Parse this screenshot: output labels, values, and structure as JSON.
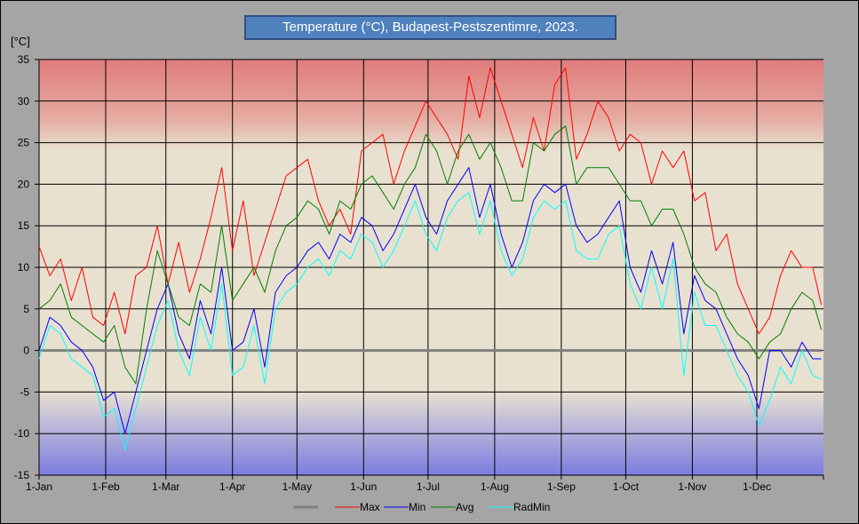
{
  "chart_data": {
    "type": "line",
    "title": "Temperature (°C), Budapest-Pestszentimre,  2023.",
    "ylabel": "[°C]",
    "xlabel": "",
    "ylim": [
      -15,
      35
    ],
    "yticks": [
      "35",
      "30",
      "25",
      "20",
      "15",
      "10",
      "5",
      "0",
      "-5",
      "-10",
      "-15"
    ],
    "ytick_values": [
      35,
      30,
      25,
      20,
      15,
      10,
      5,
      0,
      -5,
      -10,
      -15
    ],
    "xticks": [
      "1-Jan",
      "1-Feb",
      "1-Mar",
      "1-Apr",
      "1-May",
      "1-Jun",
      "1-Jul",
      "1-Aug",
      "1-Sep",
      "1-Oct",
      "1-Nov",
      "1-Dec"
    ],
    "xtick_days": [
      0,
      31,
      59,
      90,
      120,
      151,
      181,
      212,
      243,
      273,
      304,
      334
    ],
    "xlim_days": [
      0,
      365
    ],
    "grid": true,
    "legend_position": "bottom",
    "background_bands": {
      "hot_above": 25,
      "cold_below": -8
    },
    "x_days": [
      0,
      5,
      10,
      15,
      20,
      25,
      30,
      35,
      40,
      45,
      50,
      55,
      60,
      65,
      70,
      75,
      80,
      85,
      90,
      95,
      100,
      105,
      110,
      115,
      120,
      125,
      130,
      135,
      140,
      145,
      150,
      155,
      160,
      165,
      170,
      175,
      180,
      185,
      190,
      195,
      200,
      205,
      210,
      215,
      220,
      225,
      230,
      235,
      240,
      245,
      250,
      255,
      260,
      265,
      270,
      275,
      280,
      285,
      290,
      295,
      300,
      305,
      310,
      315,
      320,
      325,
      330,
      335,
      340,
      345,
      350,
      355,
      360,
      364
    ],
    "series": [
      {
        "name": "",
        "color": "#808080",
        "values": [
          0,
          0,
          0,
          0,
          0,
          0,
          0,
          0,
          0,
          0,
          0,
          0,
          0,
          0,
          0,
          0,
          0,
          0,
          0,
          0,
          0,
          0,
          0,
          0,
          0,
          0,
          0,
          0,
          0,
          0,
          0,
          0,
          0,
          0,
          0,
          0,
          0,
          0,
          0,
          0,
          0,
          0,
          0,
          0,
          0,
          0,
          0,
          0,
          0,
          0,
          0,
          0,
          0,
          0,
          0,
          0,
          0,
          0,
          0,
          0,
          0,
          0,
          0,
          0,
          0,
          0,
          0,
          0,
          0,
          0,
          0,
          0,
          0,
          0
        ]
      },
      {
        "name": "Max",
        "color": "#ff0000",
        "values": [
          12.5,
          9,
          11,
          6,
          10,
          4,
          3,
          7,
          2,
          9,
          10,
          15,
          8,
          13,
          7,
          11,
          16,
          22,
          12,
          18,
          9,
          13,
          17,
          21,
          22,
          23,
          18,
          15,
          17,
          14,
          24,
          25,
          26,
          20,
          24,
          27,
          30,
          28,
          26,
          23,
          33,
          28,
          34,
          30,
          26,
          22,
          28,
          24,
          32,
          34,
          23,
          26,
          30,
          28,
          24,
          26,
          25,
          20,
          24,
          22,
          24,
          18,
          19,
          12,
          14,
          8,
          5,
          2,
          4,
          9,
          12,
          10,
          10,
          5.5
        ]
      },
      {
        "name": "Min",
        "color": "#0000ff",
        "values": [
          0,
          4,
          3,
          1,
          0,
          -2,
          -6,
          -5,
          -10,
          -5,
          0,
          5,
          8,
          2,
          -1,
          6,
          2,
          10,
          0,
          1,
          5,
          -2,
          7,
          9,
          10,
          12,
          13,
          11,
          14,
          13,
          16,
          15,
          12,
          14,
          17,
          20,
          16,
          14,
          18,
          20,
          22,
          16,
          20,
          14,
          10,
          13,
          18,
          20,
          19,
          20,
          15,
          13,
          14,
          16,
          18,
          10,
          7,
          12,
          8,
          13,
          2,
          9,
          6,
          5,
          2,
          -1,
          -3,
          -7,
          0,
          0,
          -2,
          1,
          -1,
          -1
        ]
      },
      {
        "name": "Avg",
        "color": "#008000",
        "values": [
          5,
          6,
          8,
          4,
          3,
          2,
          1,
          3,
          -2,
          -4,
          5,
          12,
          8,
          4,
          3,
          8,
          7,
          15,
          6,
          8,
          10,
          7,
          12,
          15,
          16,
          18,
          17,
          14,
          18,
          17,
          20,
          21,
          19,
          17,
          20,
          22,
          26,
          24,
          20,
          24,
          26,
          23,
          25,
          22,
          18,
          18,
          25,
          24,
          26,
          27,
          20,
          22,
          22,
          22,
          20,
          18,
          18,
          15,
          17,
          17,
          14,
          10,
          8,
          7,
          4,
          2,
          1,
          -1,
          1,
          2,
          5,
          7,
          6,
          2.5
        ]
      },
      {
        "name": "RadMin",
        "color": "#00ffff",
        "values": [
          -1,
          3,
          2,
          -1,
          -2,
          -3,
          -8,
          -7,
          -12,
          -7,
          -2,
          3,
          6,
          0,
          -3,
          4,
          0,
          8,
          -3,
          -2,
          3,
          -4,
          5,
          7,
          8,
          10,
          11,
          9,
          12,
          11,
          14,
          13,
          10,
          12,
          15,
          18,
          14,
          12,
          16,
          18,
          19,
          14,
          18,
          12,
          9,
          11,
          16,
          18,
          17,
          18,
          12,
          11,
          11,
          14,
          15,
          8,
          5,
          10,
          5,
          11,
          -3,
          7,
          3,
          3,
          0,
          -3,
          -5,
          -9,
          -6,
          -2,
          -4,
          0,
          -3,
          -3.5
        ]
      }
    ]
  },
  "legend": {
    "items": [
      "",
      "Max",
      "Min",
      "Avg",
      "RadMin"
    ]
  }
}
